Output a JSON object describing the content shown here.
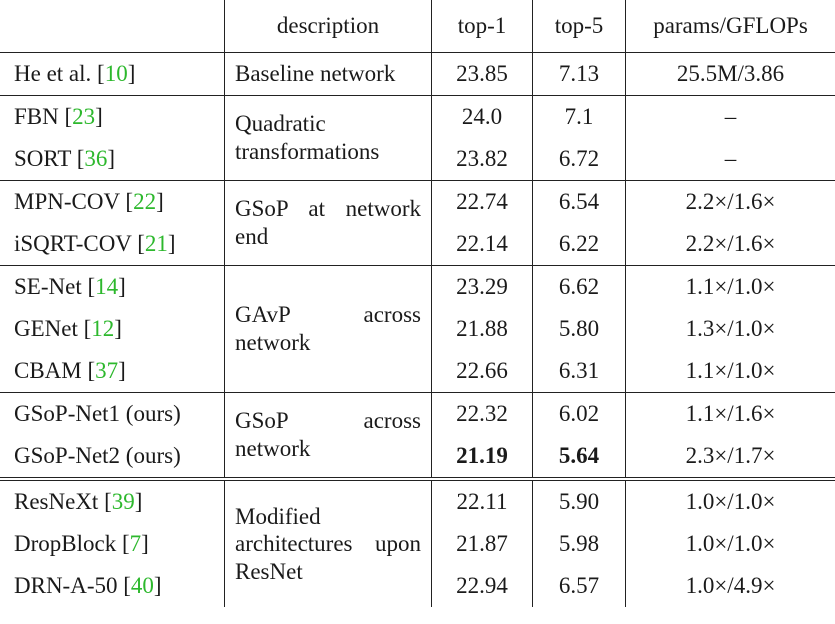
{
  "header": {
    "method": "",
    "description": "description",
    "top1": "top-1",
    "top5": "top-5",
    "params": "params/GFLOPs"
  },
  "rows": [
    {
      "name": "He et al. [",
      "ref": "10",
      "close": "]",
      "top1": "23.85",
      "top5": "7.13",
      "params": "25.5M/3.86"
    },
    {
      "name": "FBN [",
      "ref": "23",
      "close": "]",
      "top1": "24.0",
      "top5": "7.1",
      "params": "–"
    },
    {
      "name": "SORT [",
      "ref": "36",
      "close": "]",
      "top1": "23.82",
      "top5": "6.72",
      "params": "–"
    },
    {
      "name": "MPN-COV [",
      "ref": "22",
      "close": "]",
      "top1": "22.74",
      "top5": "6.54",
      "params": "2.2×/1.6×"
    },
    {
      "name": "iSQRT-COV [",
      "ref": "21",
      "close": "]",
      "top1": "22.14",
      "top5": "6.22",
      "params": "2.2×/1.6×"
    },
    {
      "name": "SE-Net [",
      "ref": "14",
      "close": "]",
      "top1": "23.29",
      "top5": "6.62",
      "params": "1.1×/1.0×"
    },
    {
      "name": "GENet [",
      "ref": "12",
      "close": "]",
      "top1": "21.88",
      "top5": "5.80",
      "params": "1.3×/1.0×"
    },
    {
      "name": "CBAM [",
      "ref": "37",
      "close": "]",
      "top1": "22.66",
      "top5": "6.31",
      "params": "1.1×/1.0×"
    },
    {
      "name": "GSoP-Net1 (ours)",
      "ref": "",
      "close": "",
      "top1": "22.32",
      "top5": "6.02",
      "params": "1.1×/1.6×"
    },
    {
      "name": "GSoP-Net2 (ours)",
      "ref": "",
      "close": "",
      "top1": "21.19",
      "top5": "5.64",
      "params": "2.3×/1.7×"
    },
    {
      "name": "ResNeXt [",
      "ref": "39",
      "close": "]",
      "top1": "22.11",
      "top5": "5.90",
      "params": "1.0×/1.0×"
    },
    {
      "name": "DropBlock [",
      "ref": "7",
      "close": "]",
      "top1": "21.87",
      "top5": "5.98",
      "params": "1.0×/1.0×"
    },
    {
      "name": "DRN-A-50 [",
      "ref": "40",
      "close": "]",
      "top1": "22.94",
      "top5": "6.57",
      "params": "1.0×/4.9×"
    }
  ],
  "descriptions": {
    "baseline": "Baseline network",
    "quadratic": "Quadratic transformations",
    "gsop_end": "GSoP at network end",
    "gavp": "GAvP across network",
    "gsop_across": "GSoP across network",
    "modified": "Modified architectures upon ResNet"
  },
  "colors": {
    "ref_green": "#2db82d",
    "rule": "#222222"
  }
}
